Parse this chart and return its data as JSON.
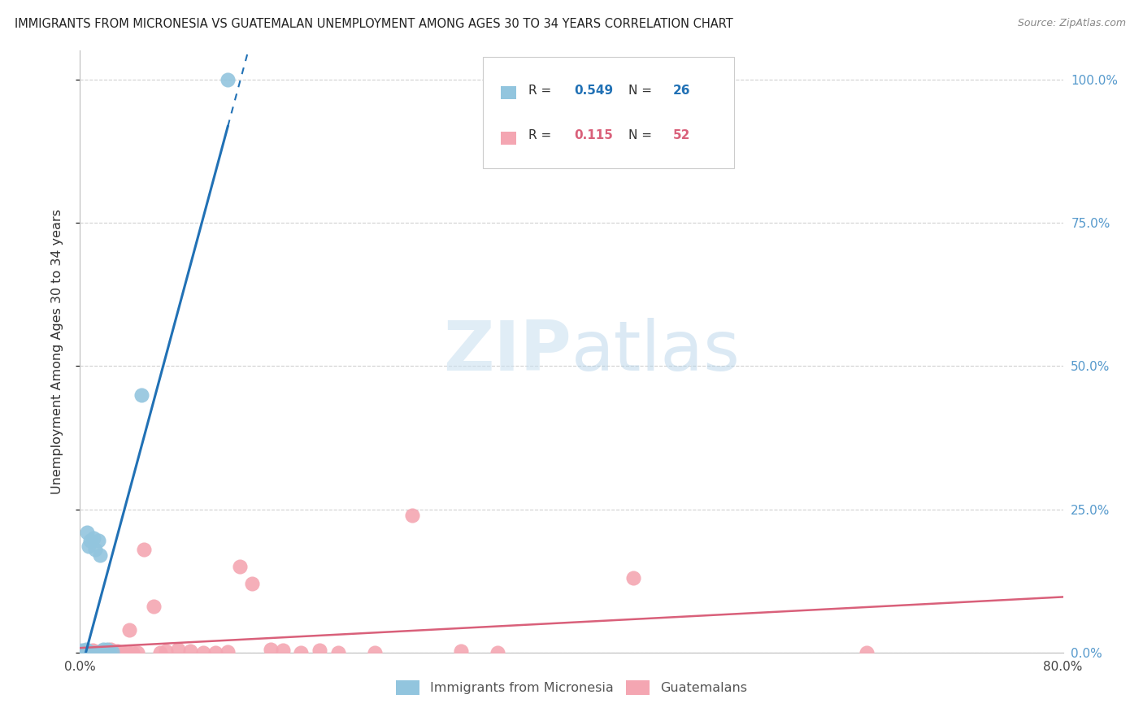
{
  "title": "IMMIGRANTS FROM MICRONESIA VS GUATEMALAN UNEMPLOYMENT AMONG AGES 30 TO 34 YEARS CORRELATION CHART",
  "source": "Source: ZipAtlas.com",
  "ylabel": "Unemployment Among Ages 30 to 34 years",
  "x_tick_positions": [
    0.0,
    0.1,
    0.2,
    0.3,
    0.4,
    0.5,
    0.6,
    0.7,
    0.8
  ],
  "x_tick_labels": [
    "0.0%",
    "",
    "",
    "",
    "",
    "",
    "",
    "",
    "80.0%"
  ],
  "y_tick_positions": [
    0.0,
    0.25,
    0.5,
    0.75,
    1.0
  ],
  "y_tick_labels_right": [
    "0.0%",
    "25.0%",
    "50.0%",
    "75.0%",
    "100.0%"
  ],
  "legend_blue_r": "0.549",
  "legend_blue_n": "26",
  "legend_pink_r": "0.115",
  "legend_pink_n": "52",
  "legend_label_blue": "Immigrants from Micronesia",
  "legend_label_pink": "Guatemalans",
  "watermark_zip": "ZIP",
  "watermark_atlas": "atlas",
  "blue_color": "#92c5de",
  "pink_color": "#f4a6b2",
  "blue_line_color": "#2171b5",
  "pink_line_color": "#d9607a",
  "background_color": "#ffffff",
  "grid_color": "#d0d0d0",
  "blue_scatter_x": [
    0.001,
    0.002,
    0.003,
    0.004,
    0.005,
    0.006,
    0.007,
    0.008,
    0.009,
    0.01,
    0.011,
    0.012,
    0.013,
    0.014,
    0.015,
    0.016,
    0.017,
    0.018,
    0.019,
    0.02,
    0.021,
    0.022,
    0.024,
    0.026,
    0.05,
    0.12
  ],
  "blue_scatter_y": [
    0.0,
    0.0,
    0.0,
    0.0,
    0.0,
    0.21,
    0.185,
    0.195,
    0.0,
    0.0,
    0.2,
    0.18,
    0.0,
    0.0,
    0.195,
    0.17,
    0.0,
    0.0,
    0.0,
    0.0,
    0.0,
    0.0,
    0.0,
    0.0,
    0.45,
    1.0
  ],
  "pink_scatter_x": [
    0.001,
    0.002,
    0.003,
    0.004,
    0.005,
    0.006,
    0.007,
    0.008,
    0.009,
    0.01,
    0.011,
    0.012,
    0.013,
    0.014,
    0.015,
    0.016,
    0.017,
    0.018,
    0.019,
    0.02,
    0.022,
    0.025,
    0.028,
    0.03,
    0.033,
    0.035,
    0.038,
    0.04,
    0.043,
    0.047,
    0.052,
    0.06,
    0.065,
    0.07,
    0.08,
    0.09,
    0.1,
    0.11,
    0.12,
    0.13,
    0.14,
    0.155,
    0.165,
    0.18,
    0.195,
    0.21,
    0.24,
    0.27,
    0.31,
    0.34,
    0.45,
    0.64
  ],
  "pink_scatter_y": [
    0.0,
    0.0,
    0.0,
    0.0,
    0.0,
    0.0,
    0.0,
    0.0,
    0.0,
    0.0,
    0.0,
    0.0,
    0.0,
    0.0,
    0.0,
    0.0,
    0.0,
    0.0,
    0.0,
    0.0,
    0.0,
    0.0,
    0.0,
    0.0,
    0.0,
    0.0,
    0.0,
    0.04,
    0.0,
    0.0,
    0.18,
    0.08,
    0.0,
    0.0,
    0.0,
    0.0,
    0.0,
    0.0,
    0.0,
    0.15,
    0.12,
    0.0,
    0.0,
    0.0,
    0.0,
    0.0,
    0.0,
    0.24,
    0.0,
    0.0,
    0.13,
    0.0
  ],
  "xlim": [
    0.0,
    0.8
  ],
  "ylim": [
    0.0,
    1.05
  ]
}
